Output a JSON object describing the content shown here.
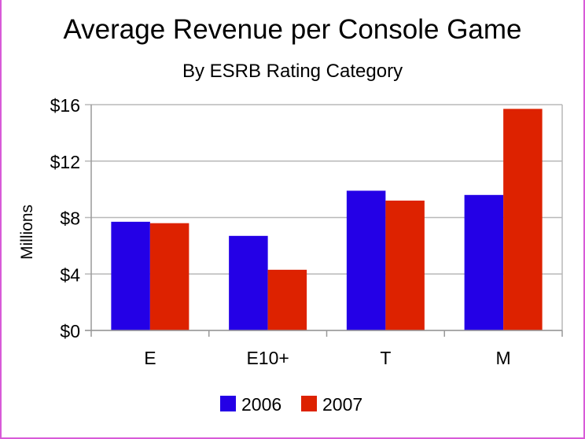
{
  "chart_data": {
    "type": "bar",
    "title": "Average Revenue per Console Game",
    "subtitle": "By ESRB Rating Category",
    "xlabel": "",
    "ylabel": "Millions",
    "categories": [
      "E",
      "E10+",
      "T",
      "M"
    ],
    "series": [
      {
        "name": "2006",
        "color": "#2400e6",
        "values": [
          7.7,
          6.7,
          9.9,
          9.6
        ]
      },
      {
        "name": "2007",
        "color": "#dd2200",
        "values": [
          7.6,
          4.3,
          9.2,
          15.7
        ]
      }
    ],
    "ylim": [
      0,
      16
    ],
    "yticks": [
      0,
      4,
      8,
      12,
      16
    ],
    "ytick_labels": [
      "$0",
      "$4",
      "$8",
      "$12",
      "$16"
    ],
    "grid": true,
    "legend_position": "bottom-center"
  }
}
